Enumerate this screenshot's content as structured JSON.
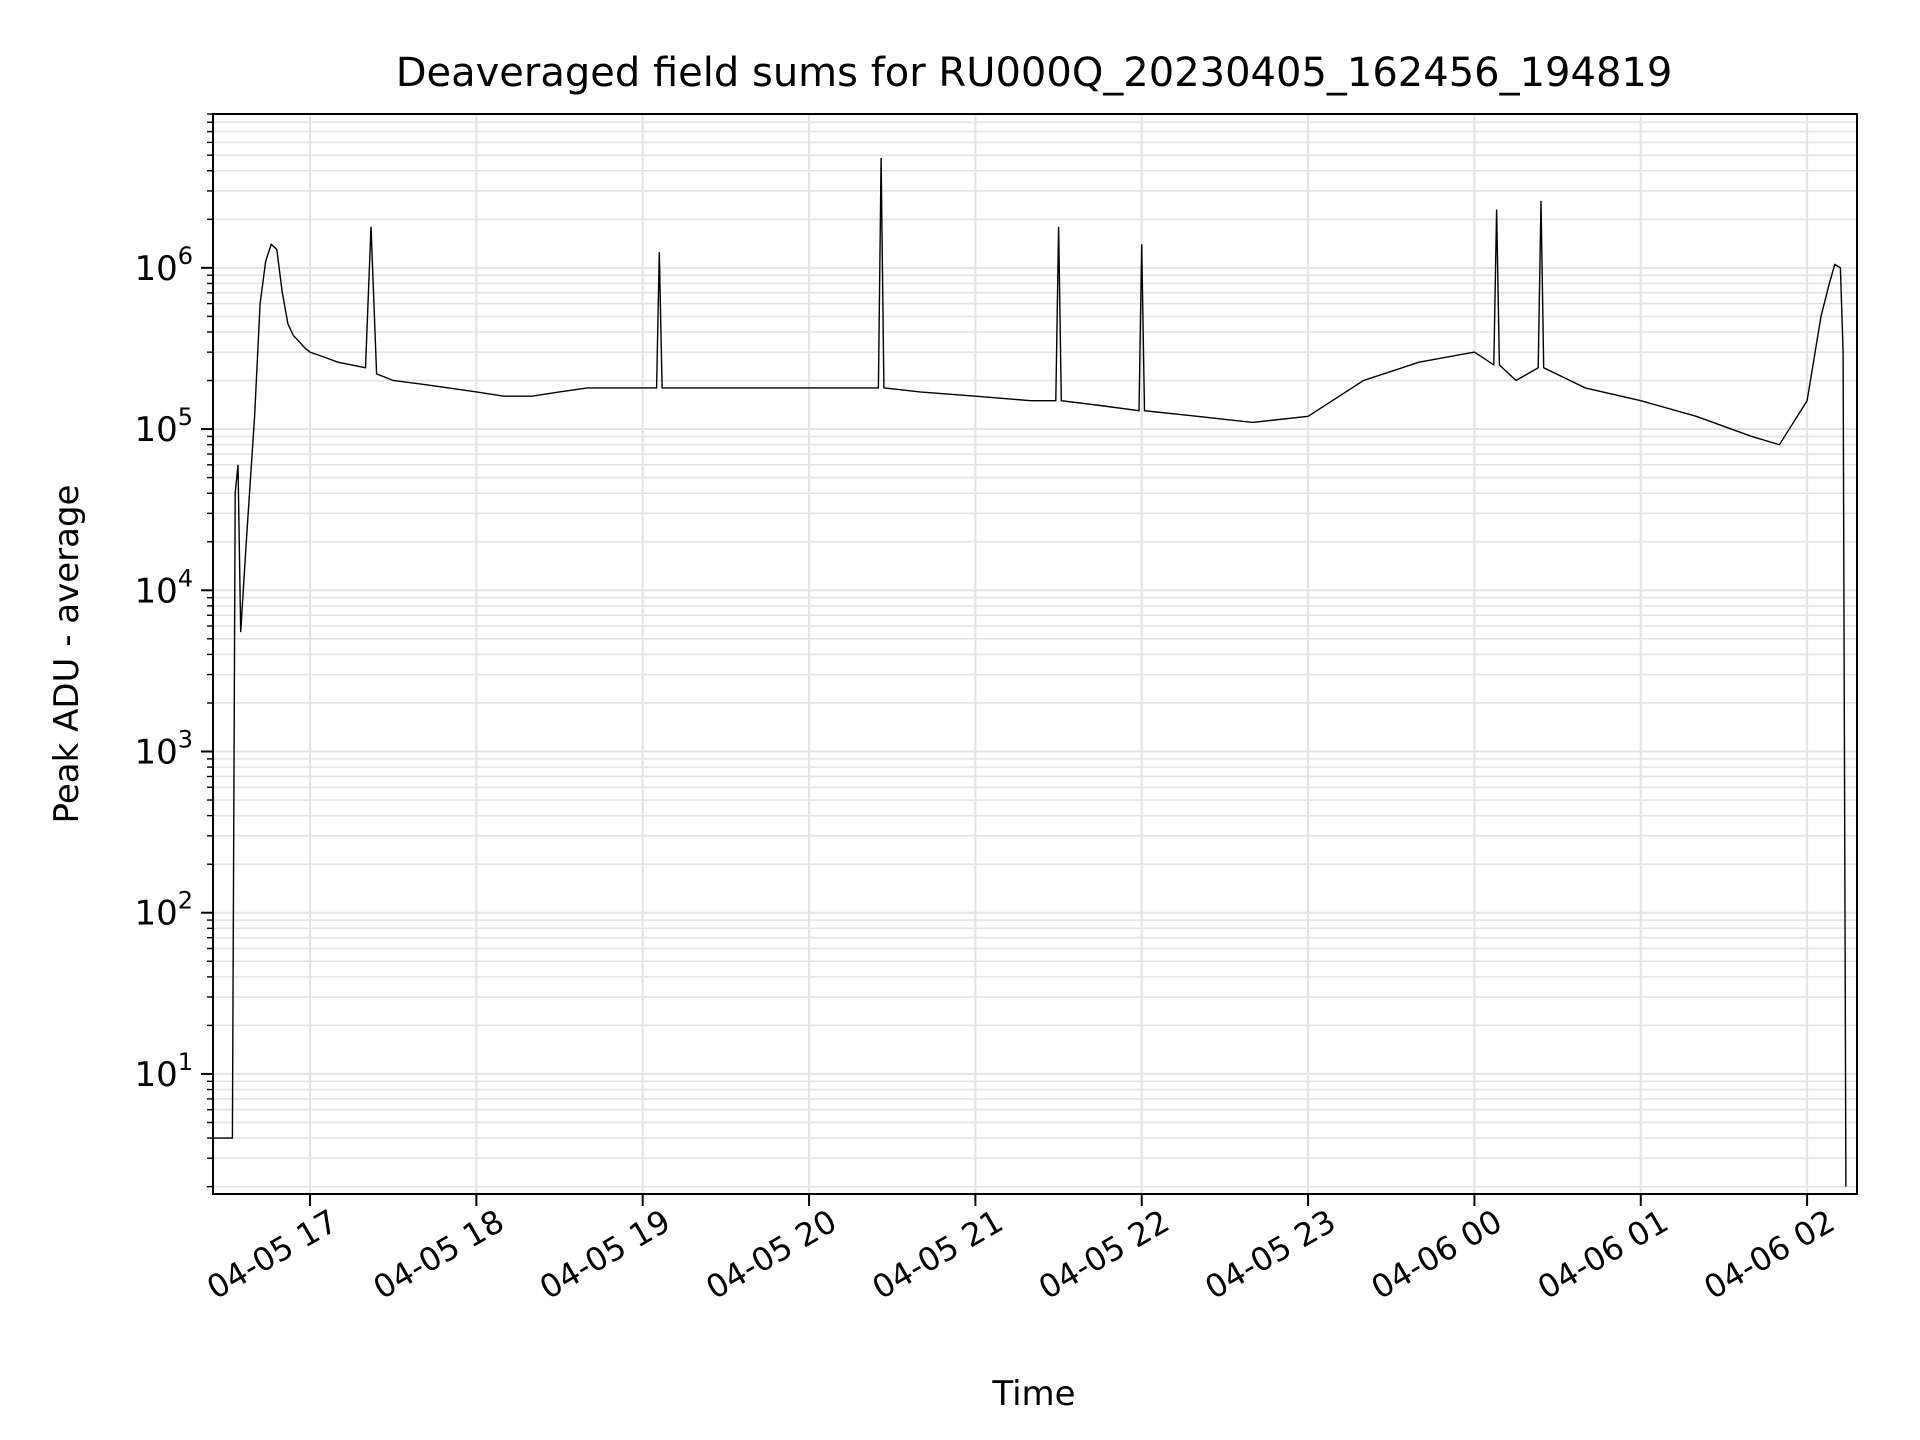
{
  "chart_data": {
    "type": "line",
    "title": "Deaveraged field sums for RU000Q_20230405_162456_194819",
    "xlabel": "Time",
    "ylabel": "Peak ADU - average",
    "yscale": "log",
    "ylim": [
      1.8,
      9000000
    ],
    "xlim": [
      "2023-04-05 16:25",
      "2023-04-06 02:18"
    ],
    "grid": true,
    "legend": "none",
    "line_color": "#000000",
    "grid_color": "#e3e3e3",
    "x_ticks": [
      {
        "value": "2023-04-05 17:00",
        "label": "04-05 17"
      },
      {
        "value": "2023-04-05 18:00",
        "label": "04-05 18"
      },
      {
        "value": "2023-04-05 19:00",
        "label": "04-05 19"
      },
      {
        "value": "2023-04-05 20:00",
        "label": "04-05 20"
      },
      {
        "value": "2023-04-05 21:00",
        "label": "04-05 21"
      },
      {
        "value": "2023-04-05 22:00",
        "label": "04-05 22"
      },
      {
        "value": "2023-04-05 23:00",
        "label": "04-05 23"
      },
      {
        "value": "2023-04-06 00:00",
        "label": "04-06 00"
      },
      {
        "value": "2023-04-06 01:00",
        "label": "04-06 01"
      },
      {
        "value": "2023-04-06 02:00",
        "label": "04-06 02"
      }
    ],
    "y_ticks": [
      {
        "value": 10,
        "base": "10",
        "exp": "1"
      },
      {
        "value": 100,
        "base": "10",
        "exp": "2"
      },
      {
        "value": 1000,
        "base": "10",
        "exp": "3"
      },
      {
        "value": 10000,
        "base": "10",
        "exp": "4"
      },
      {
        "value": 100000,
        "base": "10",
        "exp": "5"
      },
      {
        "value": 1000000,
        "base": "10",
        "exp": "6"
      }
    ],
    "series": [
      {
        "x": [
          "2023-04-05 16:25",
          "2023-04-05 16:29",
          "2023-04-05 16:30",
          "2023-04-05 16:31",
          "2023-04-05 16:32",
          "2023-04-05 16:33",
          "2023-04-05 16:34",
          "2023-04-05 16:35",
          "2023-04-05 16:37",
          "2023-04-05 16:40",
          "2023-04-05 16:42",
          "2023-04-05 16:44",
          "2023-04-05 16:46",
          "2023-04-05 16:48",
          "2023-04-05 16:50",
          "2023-04-05 16:52",
          "2023-04-05 16:54",
          "2023-04-05 16:56",
          "2023-04-05 16:58",
          "2023-04-05 17:00",
          "2023-04-05 17:05",
          "2023-04-05 17:10",
          "2023-04-05 17:15",
          "2023-04-05 17:20",
          "2023-04-05 17:22",
          "2023-04-05 17:24",
          "2023-04-05 17:30",
          "2023-04-05 17:40",
          "2023-04-05 17:50",
          "2023-04-05 18:00",
          "2023-04-05 18:10",
          "2023-04-05 18:20",
          "2023-04-05 18:30",
          "2023-04-05 18:40",
          "2023-04-05 18:50",
          "2023-04-05 19:00",
          "2023-04-05 19:05",
          "2023-04-05 19:06",
          "2023-04-05 19:07",
          "2023-04-05 19:20",
          "2023-04-05 19:40",
          "2023-04-05 20:00",
          "2023-04-05 20:20",
          "2023-04-05 20:25",
          "2023-04-05 20:26",
          "2023-04-05 20:27",
          "2023-04-05 20:40",
          "2023-04-05 21:00",
          "2023-04-05 21:20",
          "2023-04-05 21:29",
          "2023-04-05 21:30",
          "2023-04-05 21:31",
          "2023-04-05 21:45",
          "2023-04-05 21:59",
          "2023-04-05 22:00",
          "2023-04-05 22:01",
          "2023-04-05 22:20",
          "2023-04-05 22:40",
          "2023-04-05 23:00",
          "2023-04-05 23:20",
          "2023-04-05 23:40",
          "2023-04-06 00:00",
          "2023-04-06 00:07",
          "2023-04-06 00:08",
          "2023-04-06 00:09",
          "2023-04-06 00:15",
          "2023-04-06 00:23",
          "2023-04-06 00:24",
          "2023-04-06 00:25",
          "2023-04-06 00:40",
          "2023-04-06 01:00",
          "2023-04-06 01:20",
          "2023-04-06 01:40",
          "2023-04-06 01:50",
          "2023-04-06 02:00",
          "2023-04-06 02:05",
          "2023-04-06 02:08",
          "2023-04-06 02:10",
          "2023-04-06 02:12",
          "2023-04-06 02:13",
          "2023-04-06 02:14"
        ],
        "y": [
          4,
          4,
          4,
          4,
          4,
          40000,
          60000,
          5500,
          20000,
          120000,
          600000,
          1100000,
          1400000,
          1300000,
          700000,
          450000,
          380000,
          350000,
          320000,
          300000,
          280000,
          260000,
          250000,
          240000,
          1800000,
          220000,
          200000,
          190000,
          180000,
          170000,
          160000,
          160000,
          170000,
          180000,
          180000,
          180000,
          180000,
          1250000,
          180000,
          180000,
          180000,
          180000,
          180000,
          180000,
          4800000,
          180000,
          170000,
          160000,
          150000,
          150000,
          1800000,
          150000,
          140000,
          130000,
          1400000,
          130000,
          120000,
          110000,
          120000,
          200000,
          260000,
          300000,
          250000,
          2300000,
          250000,
          200000,
          240000,
          2600000,
          240000,
          180000,
          150000,
          120000,
          90000,
          80000,
          150000,
          500000,
          800000,
          1050000,
          1000000,
          300000,
          2
        ]
      }
    ]
  }
}
